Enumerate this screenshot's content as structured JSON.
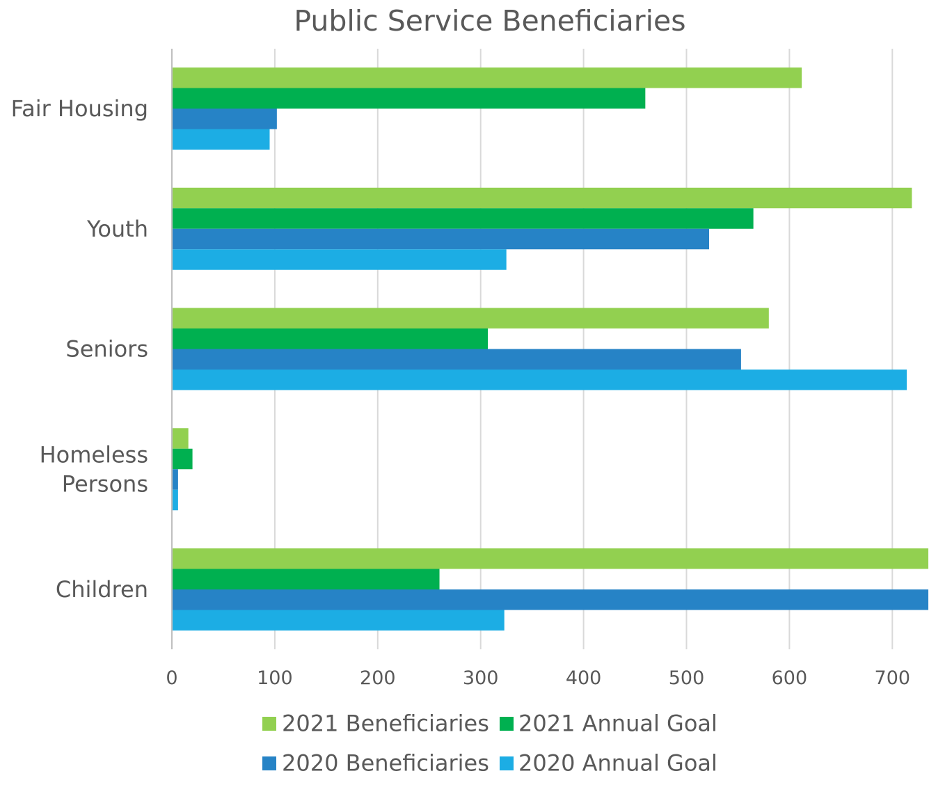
{
  "chart_data": {
    "type": "bar",
    "orientation": "horizontal",
    "title": "Public Service Beneficiaries",
    "xlabel": "",
    "ylabel": "",
    "xlim": [
      0,
      735
    ],
    "x_ticks": [
      "0",
      "100",
      "200",
      "300",
      "400",
      "500",
      "600",
      "700"
    ],
    "grid": "vertical",
    "legend_position": "bottom",
    "categories": [
      [
        "Fair Housing"
      ],
      [
        "Youth"
      ],
      [
        "Seniors"
      ],
      [
        "Homeless",
        "Persons"
      ],
      [
        "Children"
      ]
    ],
    "series": [
      {
        "name": "2021 Beneficiaries",
        "color": "#92D050",
        "values": [
          612,
          719,
          580,
          16,
          735
        ]
      },
      {
        "name": "2021 Annual Goal",
        "color": "#00B050",
        "values": [
          460,
          565,
          307,
          20,
          260
        ]
      },
      {
        "name": "2020 Beneficiaries",
        "color": "#2683C6",
        "values": [
          102,
          522,
          553,
          6,
          735
        ]
      },
      {
        "name": "2020 Annual Goal",
        "color": "#1CADE4",
        "values": [
          95,
          325,
          714,
          6,
          323
        ]
      }
    ]
  }
}
